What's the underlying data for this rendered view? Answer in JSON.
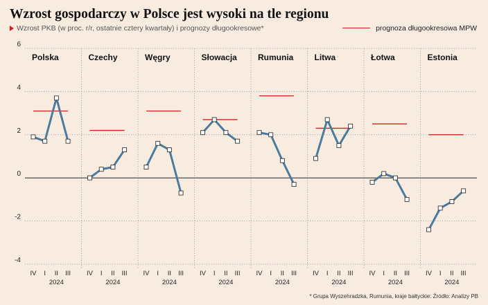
{
  "title": "Wzrost gospodarczy w Polsce jest wysoki na tle regionu",
  "subtitle": "Wzrost PKB (w proc. r/r, ostatnie cztery kwartały) i prognozy długookresowe*",
  "legend_label": "prognoza długookresowa MPW",
  "footnote": "* Grupa Wyszehradzka, Rumunia, kraje bałtyckie. Źródło: Analizy PB",
  "colors": {
    "background": "#f8ece1",
    "series": "#4a7a9c",
    "forecast": "#d42020",
    "grid": "#9a9a9a",
    "zero_line": "#222222"
  },
  "chart_data": {
    "type": "line",
    "ylim": [
      -4,
      6
    ],
    "yticks": [
      6,
      4,
      2,
      0,
      -2,
      -4
    ],
    "ytick_labels": [
      "6",
      "4",
      "2",
      "0",
      "-2",
      "-4"
    ],
    "quarters": [
      "IV",
      "I",
      "II",
      "III"
    ],
    "year_label": "2024",
    "grid": "horizontal dotted",
    "panels": [
      {
        "name": "Polska",
        "values": [
          1.9,
          1.7,
          3.7,
          1.7
        ],
        "forecast": 3.1
      },
      {
        "name": "Czechy",
        "values": [
          0.0,
          0.4,
          0.5,
          1.3
        ],
        "forecast": 2.2
      },
      {
        "name": "Węgry",
        "values": [
          0.5,
          1.6,
          1.3,
          -0.7
        ],
        "forecast": 3.1
      },
      {
        "name": "Słowacja",
        "values": [
          2.1,
          2.7,
          2.1,
          1.7
        ],
        "forecast": 2.7
      },
      {
        "name": "Rumunia",
        "values": [
          2.1,
          2.0,
          0.8,
          -0.3
        ],
        "forecast": 3.8
      },
      {
        "name": "Litwa",
        "values": [
          0.9,
          2.7,
          1.5,
          2.4
        ],
        "forecast": 2.3
      },
      {
        "name": "Łotwa",
        "values": [
          -0.2,
          0.2,
          0.0,
          -1.0
        ],
        "forecast": 2.5
      },
      {
        "name": "Estonia",
        "values": [
          -2.4,
          -1.4,
          -1.1,
          -0.6
        ],
        "forecast": 2.0
      }
    ]
  }
}
